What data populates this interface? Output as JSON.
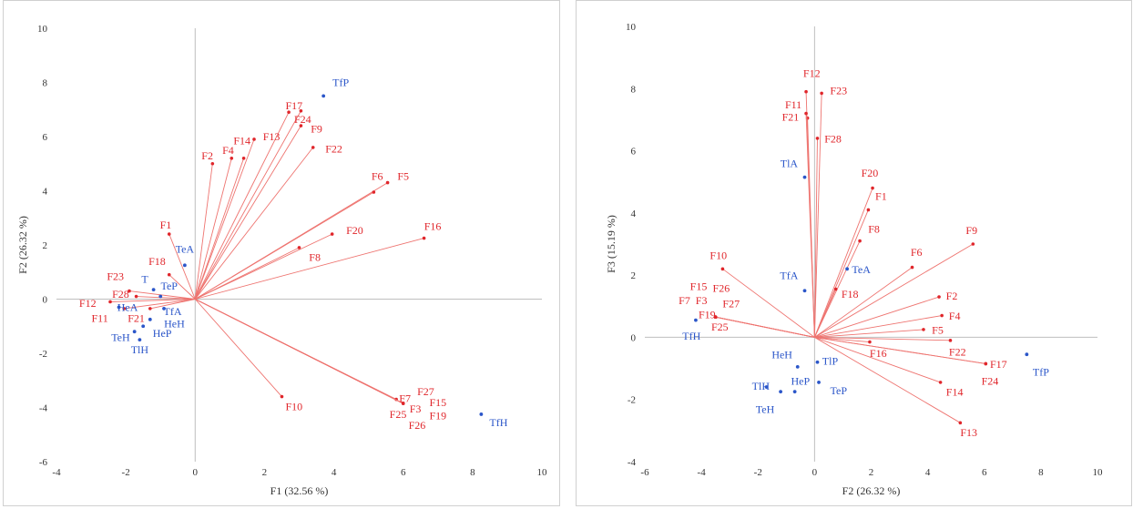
{
  "colors": {
    "variable": "#e0262b",
    "observation": "#2b56c9",
    "vector": "#ee7470",
    "axis_text": "#333333",
    "zero_line": "#bfbfbf"
  },
  "chart_data": [
    {
      "type": "scatter",
      "subtype": "pca-biplot",
      "title": "",
      "xlabel": "F1 (32.56 %)",
      "ylabel": "F2 (26.32 %)",
      "xlim": [
        -4,
        10
      ],
      "ylim": [
        -6,
        10
      ],
      "x_ticks": [
        -4,
        -2,
        0,
        2,
        4,
        6,
        8,
        10
      ],
      "y_ticks": [
        -6,
        -4,
        -2,
        0,
        2,
        4,
        6,
        8,
        10
      ],
      "grid": false,
      "series": [
        {
          "role": "variables",
          "points": [
            {
              "label": "F1",
              "x": -0.75,
              "y": 2.4
            },
            {
              "label": "F2",
              "x": 0.5,
              "y": 5.0
            },
            {
              "label": "F3",
              "x": 6.0,
              "y": -3.85
            },
            {
              "label": "F4",
              "x": 1.05,
              "y": 5.2
            },
            {
              "label": "F5",
              "x": 5.55,
              "y": 4.3
            },
            {
              "label": "F6",
              "x": 5.15,
              "y": 3.95
            },
            {
              "label": "F7",
              "x": 5.8,
              "y": -3.7
            },
            {
              "label": "F8",
              "x": 3.0,
              "y": 1.9
            },
            {
              "label": "F9",
              "x": 3.05,
              "y": 6.4
            },
            {
              "label": "F10",
              "x": 2.5,
              "y": -3.6
            },
            {
              "label": "F11",
              "x": -2.05,
              "y": -0.35
            },
            {
              "label": "F12",
              "x": -2.45,
              "y": -0.1
            },
            {
              "label": "F13",
              "x": 1.4,
              "y": 5.2
            },
            {
              "label": "F14",
              "x": 1.7,
              "y": 5.9
            },
            {
              "label": "F15",
              "x": 6.0,
              "y": -3.85
            },
            {
              "label": "F16",
              "x": 6.6,
              "y": 2.25
            },
            {
              "label": "F17",
              "x": 2.7,
              "y": 6.9
            },
            {
              "label": "F18",
              "x": -0.75,
              "y": 0.9
            },
            {
              "label": "F19",
              "x": 6.0,
              "y": -3.85
            },
            {
              "label": "F20",
              "x": 3.95,
              "y": 2.4
            },
            {
              "label": "F21",
              "x": -1.3,
              "y": -0.35
            },
            {
              "label": "F22",
              "x": 3.4,
              "y": 5.6
            },
            {
              "label": "F23",
              "x": -1.9,
              "y": 0.3
            },
            {
              "label": "F24",
              "x": 3.05,
              "y": 6.95
            },
            {
              "label": "F25",
              "x": 6.0,
              "y": -3.85
            },
            {
              "label": "F26",
              "x": 6.0,
              "y": -3.85
            },
            {
              "label": "F27",
              "x": 6.0,
              "y": -3.85
            },
            {
              "label": "F28",
              "x": -1.7,
              "y": 0.1
            }
          ]
        },
        {
          "role": "observations",
          "points": [
            {
              "label": "TfP",
              "x": 3.7,
              "y": 7.5
            },
            {
              "label": "TeA",
              "x": -0.3,
              "y": 1.25
            },
            {
              "label": "T",
              "x": -1.2,
              "y": 0.35
            },
            {
              "label": "TeP",
              "x": -1.0,
              "y": 0.1
            },
            {
              "label": "TfA",
              "x": -0.9,
              "y": -0.35
            },
            {
              "label": "HeA",
              "x": -2.2,
              "y": -0.3
            },
            {
              "label": "HeH",
              "x": -1.3,
              "y": -0.75
            },
            {
              "label": "HeP",
              "x": -1.5,
              "y": -1.0
            },
            {
              "label": "TeH",
              "x": -1.75,
              "y": -1.2
            },
            {
              "label": "TlH",
              "x": -1.6,
              "y": -1.5
            },
            {
              "label": "TfH",
              "x": 8.25,
              "y": -4.25
            }
          ]
        }
      ],
      "annotations": [
        {
          "text": "F17",
          "x": 2.85,
          "y": 7.1
        },
        {
          "text": "F24",
          "x": 3.1,
          "y": 6.6
        },
        {
          "text": "F9",
          "x": 3.5,
          "y": 6.25
        },
        {
          "text": "F14",
          "x": 1.35,
          "y": 5.8
        },
        {
          "text": "F13",
          "x": 2.2,
          "y": 5.95
        },
        {
          "text": "F2",
          "x": 0.35,
          "y": 5.25
        },
        {
          "text": "F4",
          "x": 0.95,
          "y": 5.45
        },
        {
          "text": "F22",
          "x": 4.0,
          "y": 5.5
        },
        {
          "text": "F6",
          "x": 5.25,
          "y": 4.5
        },
        {
          "text": "F5",
          "x": 6.0,
          "y": 4.5
        },
        {
          "text": "F1",
          "x": -0.85,
          "y": 2.7
        },
        {
          "text": "F20",
          "x": 4.6,
          "y": 2.5
        },
        {
          "text": "F16",
          "x": 6.85,
          "y": 2.65
        },
        {
          "text": "F8",
          "x": 3.45,
          "y": 1.5
        },
        {
          "text": "F18",
          "x": -1.1,
          "y": 1.35
        },
        {
          "text": "F23",
          "x": -2.3,
          "y": 0.8
        },
        {
          "text": "F28",
          "x": -2.15,
          "y": 0.15
        },
        {
          "text": "F12",
          "x": -3.1,
          "y": -0.2
        },
        {
          "text": "F11",
          "x": -2.75,
          "y": -0.75
        },
        {
          "text": "F21",
          "x": -1.7,
          "y": -0.75
        },
        {
          "text": "F27",
          "x": 6.65,
          "y": -3.45
        },
        {
          "text": "F7",
          "x": 6.05,
          "y": -3.7
        },
        {
          "text": "F15",
          "x": 7.0,
          "y": -3.85
        },
        {
          "text": "F3",
          "x": 6.35,
          "y": -4.1
        },
        {
          "text": "F25",
          "x": 5.85,
          "y": -4.3
        },
        {
          "text": "F19",
          "x": 7.0,
          "y": -4.35
        },
        {
          "text": "F26",
          "x": 6.4,
          "y": -4.7
        },
        {
          "text": "F10",
          "x": 2.85,
          "y": -4.0
        },
        {
          "text": "TfP",
          "x": 4.2,
          "y": 7.95
        },
        {
          "text": "TeA",
          "x": -0.3,
          "y": 1.8
        },
        {
          "text": "T",
          "x": -1.45,
          "y": 0.7
        },
        {
          "text": "TeP",
          "x": -0.75,
          "y": 0.45
        },
        {
          "text": "TfA",
          "x": -0.65,
          "y": -0.5
        },
        {
          "text": "HeA",
          "x": -1.95,
          "y": -0.35
        },
        {
          "text": "HeH",
          "x": -0.6,
          "y": -0.95
        },
        {
          "text": "HeP",
          "x": -0.95,
          "y": -1.3
        },
        {
          "text": "TeH",
          "x": -2.15,
          "y": -1.45
        },
        {
          "text": "TlH",
          "x": -1.6,
          "y": -1.9
        },
        {
          "text": "TfH",
          "x": 8.75,
          "y": -4.6
        }
      ]
    },
    {
      "type": "scatter",
      "subtype": "pca-biplot",
      "title": "",
      "xlabel": "F2 (26.32 %)",
      "ylabel": "F3 (15.19 %)",
      "xlim": [
        -6,
        10
      ],
      "ylim": [
        -4,
        10
      ],
      "x_ticks": [
        -6,
        -4,
        -2,
        0,
        2,
        4,
        6,
        8,
        10
      ],
      "y_ticks": [
        -4,
        -2,
        0,
        2,
        4,
        6,
        8,
        10
      ],
      "grid": false,
      "series": [
        {
          "role": "variables",
          "points": [
            {
              "label": "F1",
              "x": 1.9,
              "y": 4.1
            },
            {
              "label": "F2",
              "x": 4.4,
              "y": 1.3
            },
            {
              "label": "F3",
              "x": -3.5,
              "y": 0.65
            },
            {
              "label": "F4",
              "x": 4.5,
              "y": 0.7
            },
            {
              "label": "F5",
              "x": 3.85,
              "y": 0.25
            },
            {
              "label": "F6",
              "x": 3.45,
              "y": 2.25
            },
            {
              "label": "F7",
              "x": -3.5,
              "y": 0.65
            },
            {
              "label": "F8",
              "x": 1.6,
              "y": 3.1
            },
            {
              "label": "F9",
              "x": 5.6,
              "y": 3.0
            },
            {
              "label": "F10",
              "x": -3.25,
              "y": 2.2
            },
            {
              "label": "F11",
              "x": -0.25,
              "y": 7.05
            },
            {
              "label": "F12",
              "x": -0.3,
              "y": 7.9
            },
            {
              "label": "F13",
              "x": 5.15,
              "y": -2.75
            },
            {
              "label": "F14",
              "x": 4.45,
              "y": -1.45
            },
            {
              "label": "F15",
              "x": -3.5,
              "y": 0.65
            },
            {
              "label": "F16",
              "x": 1.95,
              "y": -0.15
            },
            {
              "label": "F17",
              "x": 6.05,
              "y": -0.85
            },
            {
              "label": "F18",
              "x": 0.75,
              "y": 1.55
            },
            {
              "label": "F19",
              "x": -3.5,
              "y": 0.65
            },
            {
              "label": "F20",
              "x": 2.05,
              "y": 4.8
            },
            {
              "label": "F21",
              "x": -0.3,
              "y": 7.2
            },
            {
              "label": "F22",
              "x": 4.8,
              "y": -0.1
            },
            {
              "label": "F23",
              "x": 0.25,
              "y": 7.85
            },
            {
              "label": "F24",
              "x": 6.05,
              "y": -0.85
            },
            {
              "label": "F25",
              "x": -3.5,
              "y": 0.65
            },
            {
              "label": "F26",
              "x": -3.5,
              "y": 0.65
            },
            {
              "label": "F27",
              "x": -3.5,
              "y": 0.65
            },
            {
              "label": "F28",
              "x": 0.1,
              "y": 6.4
            }
          ]
        },
        {
          "role": "observations",
          "points": [
            {
              "label": "TfP",
              "x": 7.5,
              "y": -0.55
            },
            {
              "label": "TlA",
              "x": -0.35,
              "y": 5.15
            },
            {
              "label": "TeA",
              "x": 1.15,
              "y": 2.2
            },
            {
              "label": "TfA",
              "x": -0.35,
              "y": 1.5
            },
            {
              "label": "HeH",
              "x": -0.6,
              "y": -0.95
            },
            {
              "label": "TlP",
              "x": 0.1,
              "y": -0.8
            },
            {
              "label": "TeP",
              "x": 0.15,
              "y": -1.45
            },
            {
              "label": "HeP",
              "x": -0.7,
              "y": -1.75
            },
            {
              "label": "TlH",
              "x": -1.2,
              "y": -1.75
            },
            {
              "label": "TeH",
              "x": -1.7,
              "y": -1.6
            },
            {
              "label": "TfH",
              "x": -4.2,
              "y": 0.55
            }
          ]
        }
      ],
      "annotations": [
        {
          "text": "F12",
          "x": -0.1,
          "y": 8.45
        },
        {
          "text": "F23",
          "x": 0.85,
          "y": 7.9
        },
        {
          "text": "F11",
          "x": -0.75,
          "y": 7.45
        },
        {
          "text": "F21",
          "x": -0.85,
          "y": 7.05
        },
        {
          "text": "F28",
          "x": 0.65,
          "y": 6.35
        },
        {
          "text": "TlA",
          "x": -0.9,
          "y": 5.55
        },
        {
          "text": "F20",
          "x": 1.95,
          "y": 5.25
        },
        {
          "text": "F1",
          "x": 2.35,
          "y": 4.5
        },
        {
          "text": "F8",
          "x": 2.1,
          "y": 3.45
        },
        {
          "text": "F6",
          "x": 3.6,
          "y": 2.7
        },
        {
          "text": "F9",
          "x": 5.55,
          "y": 3.4
        },
        {
          "text": "F10",
          "x": -3.4,
          "y": 2.6
        },
        {
          "text": "TeA",
          "x": 1.65,
          "y": 2.15
        },
        {
          "text": "TfA",
          "x": -0.9,
          "y": 1.95
        },
        {
          "text": "F18",
          "x": 1.25,
          "y": 1.35
        },
        {
          "text": "F2",
          "x": 4.85,
          "y": 1.3
        },
        {
          "text": "F4",
          "x": 4.95,
          "y": 0.65
        },
        {
          "text": "F5",
          "x": 4.35,
          "y": 0.2
        },
        {
          "text": "F15",
          "x": -4.1,
          "y": 1.6
        },
        {
          "text": "F26",
          "x": -3.3,
          "y": 1.55
        },
        {
          "text": "F7",
          "x": -4.6,
          "y": 1.15
        },
        {
          "text": "F3",
          "x": -4.0,
          "y": 1.15
        },
        {
          "text": "F27",
          "x": -2.95,
          "y": 1.05
        },
        {
          "text": "F19",
          "x": -3.8,
          "y": 0.7
        },
        {
          "text": "F25",
          "x": -3.35,
          "y": 0.3
        },
        {
          "text": "TfH",
          "x": -4.35,
          "y": 0.0
        },
        {
          "text": "F16",
          "x": 2.25,
          "y": -0.55
        },
        {
          "text": "F22",
          "x": 5.05,
          "y": -0.5
        },
        {
          "text": "F17",
          "x": 6.5,
          "y": -0.9
        },
        {
          "text": "TfP",
          "x": 8.0,
          "y": -1.15
        },
        {
          "text": "F24",
          "x": 6.2,
          "y": -1.45
        },
        {
          "text": "HeH",
          "x": -1.15,
          "y": -0.6
        },
        {
          "text": "TlP",
          "x": 0.55,
          "y": -0.8
        },
        {
          "text": "TlH",
          "x": -1.9,
          "y": -1.6
        },
        {
          "text": "HeP",
          "x": -0.5,
          "y": -1.45
        },
        {
          "text": "TeP",
          "x": 0.85,
          "y": -1.75
        },
        {
          "text": "TeH",
          "x": -1.75,
          "y": -2.35
        },
        {
          "text": "F14",
          "x": 4.95,
          "y": -1.8
        },
        {
          "text": "F13",
          "x": 5.45,
          "y": -3.1
        }
      ]
    }
  ]
}
